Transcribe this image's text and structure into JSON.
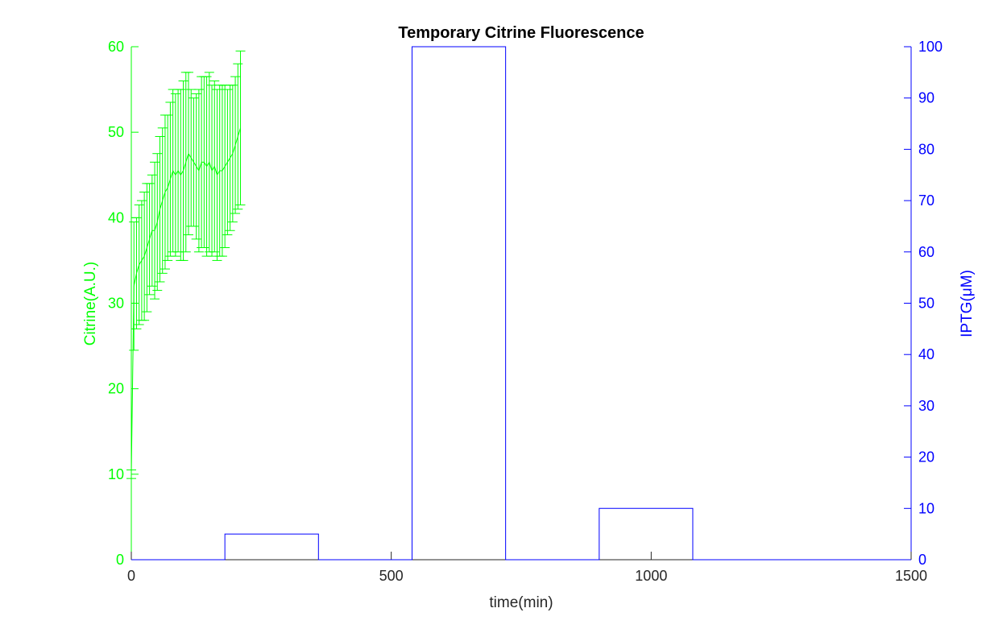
{
  "chart_data": {
    "type": "line",
    "title": "Temporary Citrine Fluorescence",
    "xlabel": "time(min)",
    "ylabel_left": "Citrine(A.U.)",
    "ylabel_right": "IPTG(μM)",
    "xlim": [
      0,
      1500
    ],
    "ylim_left": [
      0,
      60
    ],
    "ylim_right": [
      0,
      100
    ],
    "x_ticks": [
      "0",
      "500",
      "1000",
      "1500"
    ],
    "y_ticks_left": [
      "0",
      "10",
      "20",
      "30",
      "40",
      "50",
      "60"
    ],
    "y_ticks_right": [
      "0",
      "10",
      "20",
      "30",
      "40",
      "50",
      "60",
      "70",
      "80",
      "90",
      "100"
    ],
    "colors": {
      "citrine": "#00ff00",
      "iptg": "#0000ff",
      "title": "#000000",
      "axis": "#262626"
    },
    "series": [
      {
        "axis": "left",
        "style": "errorbar-line",
        "x": [
          0,
          5,
          10,
          15,
          20,
          25,
          30,
          35,
          40,
          45,
          50,
          55,
          60,
          65,
          70,
          75,
          80,
          85,
          90,
          95,
          100,
          105,
          110,
          115,
          120,
          125,
          130,
          135,
          140,
          145,
          150,
          155,
          160,
          165,
          170,
          175,
          180,
          185,
          190,
          195,
          200,
          205,
          210
        ],
        "y": [
          10,
          32,
          33.5,
          34.5,
          35,
          35.5,
          36.5,
          37.5,
          38.5,
          38.5,
          39.5,
          41,
          42,
          43,
          43.5,
          44.5,
          45.5,
          45,
          45.5,
          45,
          45.5,
          46.5,
          47.5,
          47,
          46.5,
          46,
          45.5,
          46.5,
          46.5,
          46,
          46.5,
          45.5,
          46,
          45,
          45.5,
          45.5,
          46,
          46.5,
          47,
          47.5,
          48.5,
          49.5,
          50.5
        ],
        "err": [
          0.5,
          7.5,
          6.5,
          7,
          7,
          7.5,
          7.5,
          6.5,
          6.5,
          8,
          8,
          8.5,
          8.5,
          9,
          8.5,
          9,
          9.5,
          9.5,
          9.5,
          10,
          10.5,
          10.5,
          9.5,
          8,
          7.5,
          8.5,
          9.5,
          10,
          10,
          10.5,
          10.5,
          10,
          10,
          10,
          10,
          10,
          9.5,
          8.5,
          8.5,
          8,
          8,
          8.5,
          9
        ]
      },
      {
        "axis": "right",
        "style": "stairs",
        "x": [
          0,
          180,
          180,
          360,
          360,
          540,
          540,
          720,
          720,
          900,
          900,
          1080,
          1080,
          1500
        ],
        "y": [
          0,
          0,
          5,
          5,
          0,
          0,
          100,
          100,
          0,
          0,
          10,
          10,
          0,
          0
        ]
      }
    ]
  }
}
